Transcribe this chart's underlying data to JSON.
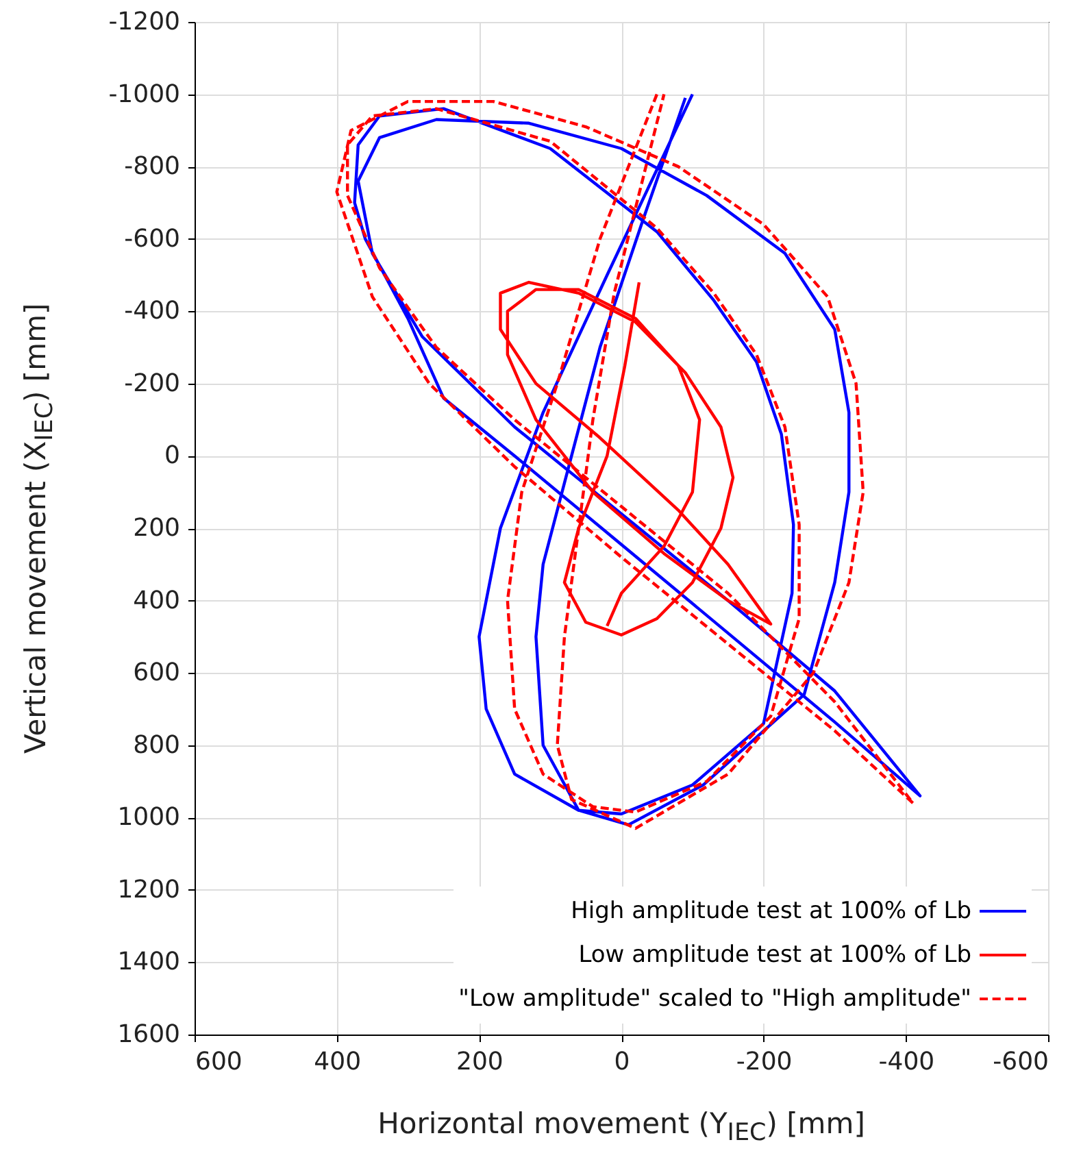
{
  "chart_data": {
    "type": "line",
    "xlabel": "Horizontal movement (Y$_{IEC}$) [mm]",
    "ylabel": "Vertical movement (X$_{IEC}$) [mm]",
    "xlim": [
      600,
      -600
    ],
    "ylim": [
      1600,
      -1200
    ],
    "xticks": [
      600,
      400,
      200,
      0,
      -200,
      -400,
      -600
    ],
    "yticks": [
      -1200,
      -1000,
      -800,
      -600,
      -400,
      -200,
      0,
      200,
      400,
      600,
      800,
      1000,
      1200,
      1400,
      1600
    ],
    "grid": true,
    "legend": "bottom right",
    "series": [
      {
        "name": "High amplitude test at 100% of Lb",
        "color": "#0000ff",
        "line_style": "solid",
        "x": [
          -100,
          20,
          110,
          170,
          200,
          190,
          150,
          60,
          0,
          -100,
          -200,
          -240,
          -242,
          -225,
          -190,
          -130,
          -50,
          100,
          250,
          340,
          370,
          375,
          360,
          300,
          250,
          150,
          0,
          -150,
          -300,
          -420,
          -300,
          -150,
          0,
          150,
          280,
          350,
          370,
          340,
          260,
          130,
          0,
          -120,
          -230,
          -300,
          -320,
          -320,
          -300,
          -257,
          -115,
          -10,
          60,
          110,
          120,
          110,
          70,
          30,
          -30,
          -90
        ],
        "values": [
          -1000,
          -500,
          -120,
          200,
          500,
          700,
          880,
          980,
          990,
          910,
          740,
          380,
          190,
          -60,
          -260,
          -430,
          -620,
          -850,
          -960,
          -940,
          -860,
          -700,
          -600,
          -380,
          -160,
          0,
          245,
          490,
          736,
          940,
          650,
          400,
          160,
          -80,
          -330,
          -560,
          -760,
          -880,
          -930,
          -920,
          -850,
          -720,
          -560,
          -350,
          -120,
          100,
          350,
          660,
          910,
          1020,
          980,
          800,
          500,
          300,
          0,
          -300,
          -650,
          -990
        ]
      },
      {
        "name": "Low amplitude test at 100% of Lb",
        "color": "#ff0000",
        "line_style": "solid",
        "x": [
          -25,
          -5,
          20,
          60,
          80,
          50,
          0,
          -50,
          -100,
          -140,
          -157,
          -140,
          -90,
          -20,
          60,
          130,
          170,
          170,
          120,
          30,
          -80,
          -150,
          -210,
          -150,
          -60,
          40,
          120,
          160,
          160,
          120,
          60,
          -20,
          -80,
          -110,
          -100,
          -60,
          0,
          20
        ],
        "values": [
          -480,
          -250,
          0,
          200,
          350,
          460,
          495,
          450,
          350,
          200,
          60,
          -80,
          -230,
          -370,
          -450,
          -480,
          -450,
          -350,
          -200,
          -50,
          150,
          300,
          465,
          400,
          270,
          100,
          -100,
          -280,
          -400,
          -460,
          -460,
          -380,
          -250,
          -100,
          100,
          250,
          380,
          470
        ]
      },
      {
        "name": "\"Low amplitude\" scaled to \"High amplitude\"",
        "color": "#ff0000",
        "line_style": "dashed",
        "x": [
          -50,
          30,
          90,
          140,
          160,
          150,
          110,
          40,
          -20,
          -120,
          -210,
          -250,
          -250,
          -230,
          -190,
          -130,
          -50,
          100,
          260,
          350,
          385,
          385,
          340,
          260,
          150,
          0,
          -150,
          -300,
          -410,
          -300,
          -150,
          0,
          150,
          270,
          350,
          400,
          380,
          300,
          180,
          50,
          -80,
          -200,
          -290,
          -330,
          -340,
          -320,
          -270,
          -150,
          -20,
          70,
          90,
          80,
          60,
          40,
          10,
          -60
        ],
        "values": [
          -1000,
          -600,
          -200,
          100,
          400,
          700,
          880,
          970,
          985,
          900,
          720,
          450,
          190,
          -80,
          -280,
          -450,
          -630,
          -870,
          -960,
          -940,
          -860,
          -720,
          -520,
          -300,
          -100,
          140,
          380,
          680,
          960,
          760,
          520,
          280,
          30,
          -200,
          -440,
          -730,
          -900,
          -980,
          -980,
          -910,
          -800,
          -640,
          -440,
          -200,
          100,
          350,
          600,
          880,
          1030,
          950,
          800,
          500,
          200,
          -100,
          -450,
          -1000
        ]
      }
    ]
  }
}
